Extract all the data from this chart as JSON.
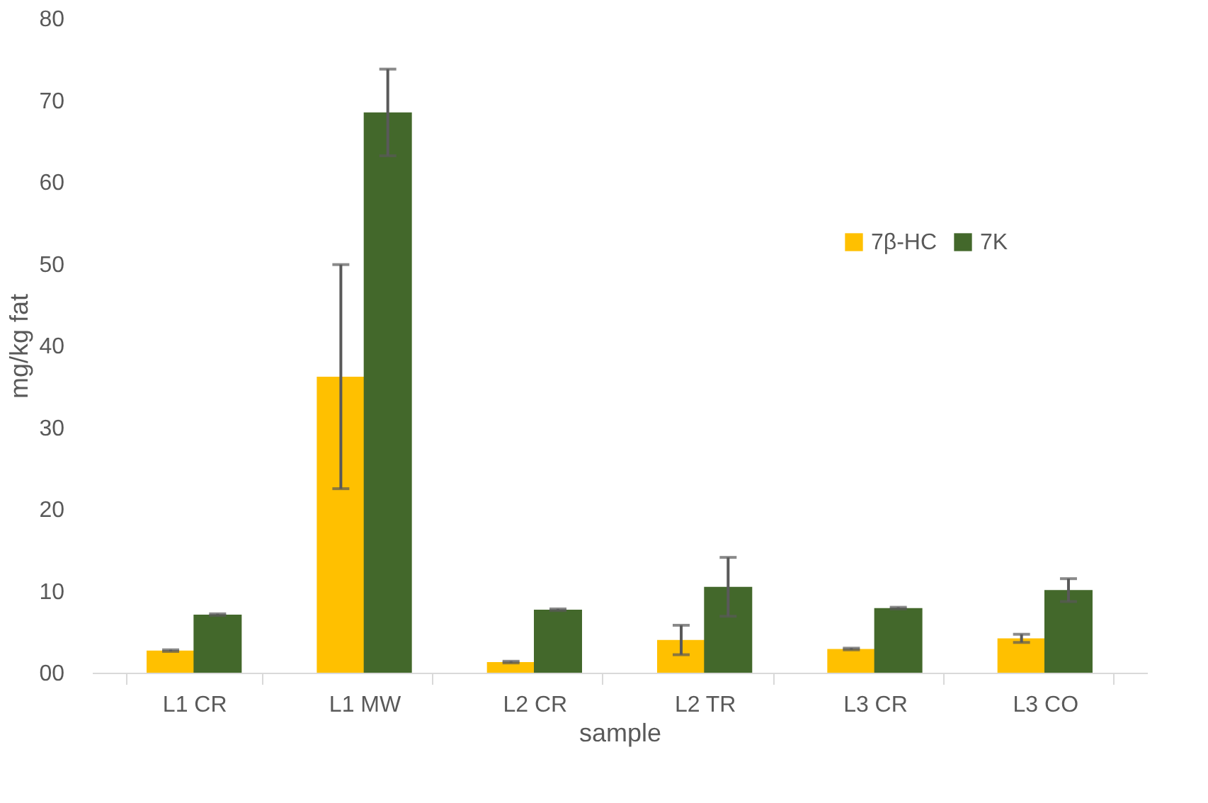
{
  "chart_data": {
    "type": "bar",
    "xlabel": "sample",
    "ylabel": "mg/kg fat",
    "categories": [
      "L1 CR",
      "L1 MW",
      "L2 CR",
      "L2 TR",
      "L3 CR",
      "L3 CO"
    ],
    "series": [
      {
        "name": "7β-HC",
        "color": "#ffc000",
        "values": [
          2.7,
          36.2,
          1.3,
          4.0,
          2.9,
          4.2
        ],
        "errors": [
          0.1,
          13.7,
          0.1,
          1.8,
          0.1,
          0.5
        ]
      },
      {
        "name": "7K",
        "color": "#43682b",
        "values": [
          7.1,
          68.5,
          7.7,
          10.5,
          7.9,
          10.1
        ],
        "errors": [
          0.1,
          5.3,
          0.1,
          3.6,
          0.1,
          1.4
        ]
      }
    ],
    "ylim": [
      0,
      80
    ],
    "yticks": [
      {
        "value": 0,
        "label": "00"
      },
      10,
      20,
      30,
      40,
      50,
      60,
      70,
      80
    ],
    "grid": false,
    "legend": "right"
  }
}
